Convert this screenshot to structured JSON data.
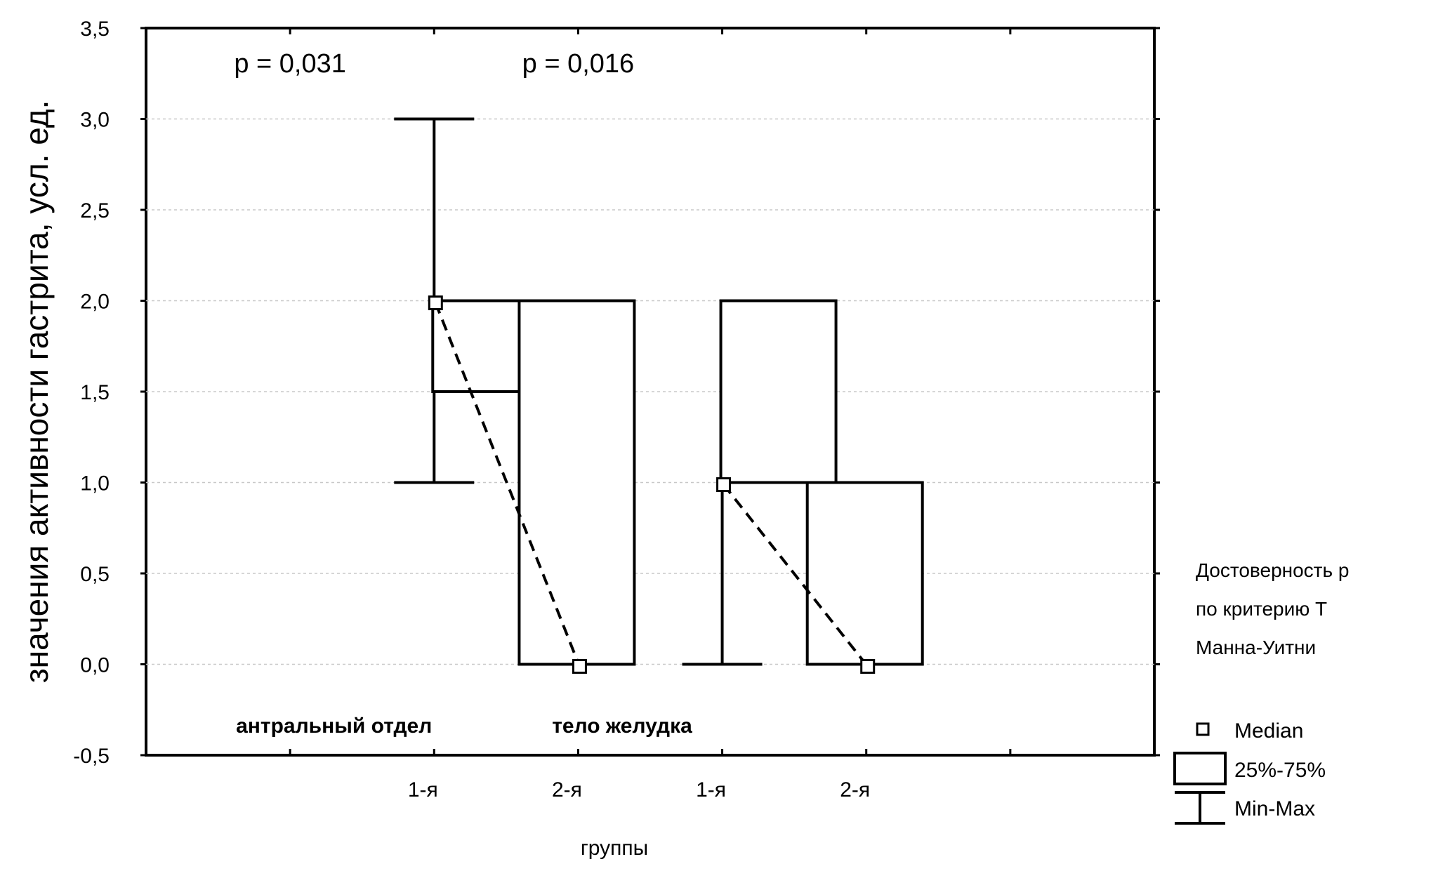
{
  "chart_data": {
    "type": "box",
    "ylabel": "значения активности гастрита, усл. ед.",
    "xlabel": "группы",
    "ylim": [
      -0.5,
      3.5
    ],
    "yticks": [
      "-0,5",
      "0,0",
      "0,5",
      "1,0",
      "1,5",
      "2,0",
      "2,5",
      "3,0",
      "3,5"
    ],
    "grid": "horizontal dashed",
    "groups": [
      {
        "label": "антральный отдел",
        "p_value": "p = 0,031",
        "boxes": [
          {
            "category": "1-я",
            "min": 1.0,
            "q1": 1.5,
            "median": 2.0,
            "q3": 2.0,
            "max": 3.0
          },
          {
            "category": "2-я",
            "min": 0.0,
            "q1": 0.0,
            "median": 0.0,
            "q3": 2.0,
            "max": 2.0
          }
        ]
      },
      {
        "label": "тело желудка",
        "p_value": "p = 0,016",
        "boxes": [
          {
            "category": "1-я",
            "min": 0.0,
            "q1": 1.0,
            "median": 1.0,
            "q3": 2.0,
            "max": 2.0
          },
          {
            "category": "2-я",
            "min": 0.0,
            "q1": 0.0,
            "median": 0.0,
            "q3": 1.0,
            "max": 1.0
          }
        ]
      }
    ],
    "note": [
      "Достоверность р",
      "по критерию Т",
      "Манна-Уитни"
    ],
    "legend": {
      "position": "right",
      "items": [
        {
          "symbol": "median-square",
          "label": "Median"
        },
        {
          "symbol": "box",
          "label": "25%-75%"
        },
        {
          "symbol": "whisker",
          "label": "Min-Max"
        }
      ]
    }
  }
}
